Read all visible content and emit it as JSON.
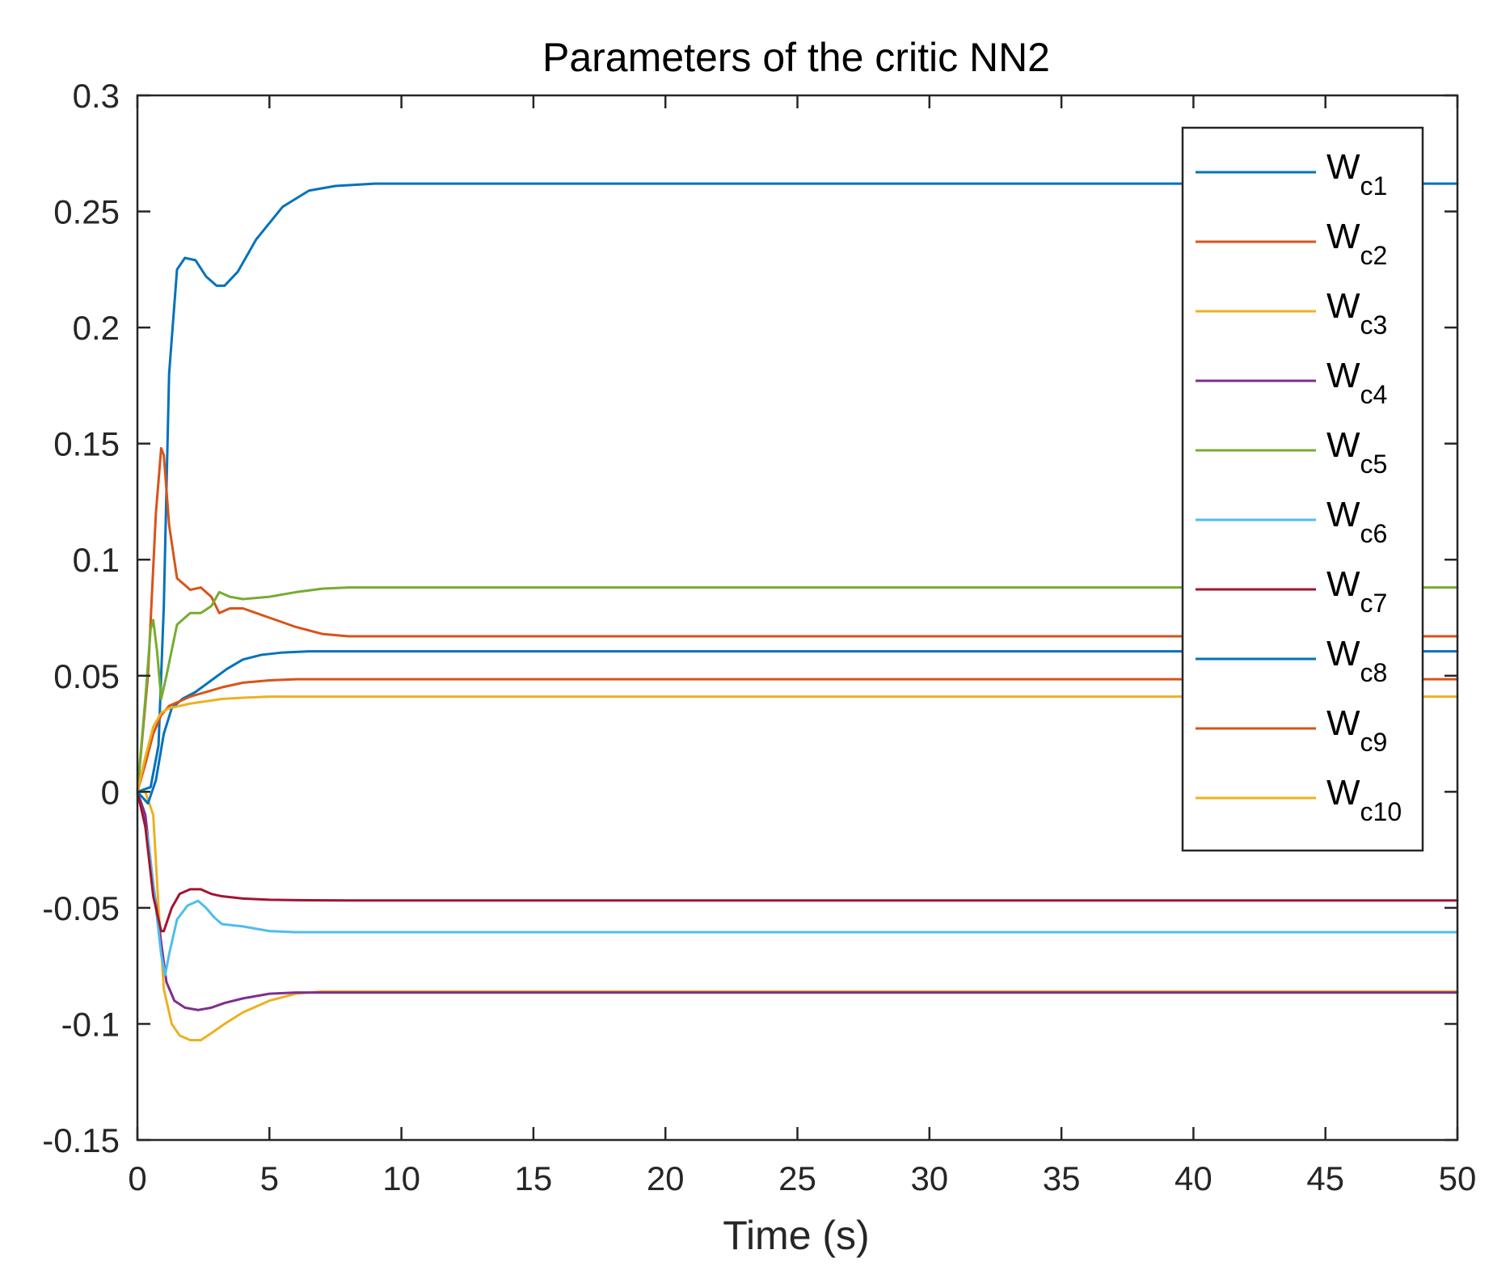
{
  "chart_data": {
    "type": "line",
    "title": "Parameters of the critic NN2",
    "xlabel": "Time (s)",
    "ylabel": "",
    "xlim": [
      0,
      50
    ],
    "ylim": [
      -0.15,
      0.3
    ],
    "x_ticks": [
      0,
      5,
      10,
      15,
      20,
      25,
      30,
      35,
      40,
      45,
      50
    ],
    "x_tick_labels": [
      "0",
      "5",
      "10",
      "15",
      "20",
      "25",
      "30",
      "35",
      "40",
      "45",
      "50"
    ],
    "y_ticks": [
      -0.15,
      -0.1,
      -0.05,
      0,
      0.05,
      0.1,
      0.15,
      0.2,
      0.25,
      0.3
    ],
    "y_tick_labels": [
      "-0.15",
      "-0.1",
      "-0.05",
      "0",
      "0.05",
      "0.1",
      "0.15",
      "0.2",
      "0.25",
      "0.3"
    ],
    "grid": false,
    "legend_position": "top-right",
    "series": [
      {
        "name": "Wc1",
        "label_main": "W",
        "label_sub": "c1",
        "color": "#0072BD",
        "x": [
          0,
          0.5,
          0.8,
          1.0,
          1.2,
          1.5,
          1.8,
          2.2,
          2.6,
          3.0,
          3.3,
          3.8,
          4.5,
          5.5,
          6.5,
          7.5,
          9,
          10,
          50
        ],
        "y": [
          0,
          0.002,
          0.02,
          0.08,
          0.18,
          0.225,
          0.23,
          0.229,
          0.222,
          0.218,
          0.218,
          0.224,
          0.238,
          0.252,
          0.259,
          0.261,
          0.262,
          0.262,
          0.262
        ]
      },
      {
        "name": "Wc2",
        "label_main": "W",
        "label_sub": "c2",
        "color": "#D95319",
        "x": [
          0,
          0.4,
          0.7,
          0.9,
          1.0,
          1.2,
          1.5,
          2.0,
          2.4,
          2.8,
          3.1,
          3.5,
          4.0,
          5,
          6,
          7,
          8,
          10,
          50
        ],
        "y": [
          0,
          0.05,
          0.12,
          0.148,
          0.145,
          0.115,
          0.092,
          0.087,
          0.088,
          0.084,
          0.077,
          0.079,
          0.079,
          0.075,
          0.071,
          0.068,
          0.067,
          0.067,
          0.067
        ]
      },
      {
        "name": "Wc3",
        "label_main": "W",
        "label_sub": "c3",
        "color": "#EDB120",
        "x": [
          0,
          0.3,
          0.6,
          0.8,
          1.0,
          1.3,
          1.6,
          2.0,
          2.4,
          2.8,
          3.3,
          4.0,
          5,
          6,
          7,
          8,
          50
        ],
        "y": [
          0,
          0.0,
          -0.01,
          -0.05,
          -0.085,
          -0.1,
          -0.105,
          -0.107,
          -0.107,
          -0.104,
          -0.1,
          -0.095,
          -0.09,
          -0.087,
          -0.086,
          -0.086,
          -0.086
        ]
      },
      {
        "name": "Wc4",
        "label_main": "W",
        "label_sub": "c4",
        "color": "#7E2F8E",
        "x": [
          0,
          0.3,
          0.6,
          0.9,
          1.1,
          1.4,
          1.8,
          2.3,
          2.8,
          3.3,
          4.0,
          5,
          6,
          7,
          50
        ],
        "y": [
          0,
          -0.01,
          -0.04,
          -0.065,
          -0.082,
          -0.09,
          -0.093,
          -0.094,
          -0.093,
          -0.091,
          -0.089,
          -0.087,
          -0.0865,
          -0.0865,
          -0.0865
        ]
      },
      {
        "name": "Wc5",
        "label_main": "W",
        "label_sub": "c5",
        "color": "#77AC30",
        "x": [
          0,
          0.3,
          0.5,
          0.6,
          0.75,
          0.9,
          1.1,
          1.5,
          2.0,
          2.4,
          2.8,
          3.1,
          3.5,
          4.0,
          5,
          6,
          7,
          8,
          10,
          50
        ],
        "y": [
          0,
          0.04,
          0.07,
          0.074,
          0.06,
          0.04,
          0.05,
          0.072,
          0.077,
          0.077,
          0.08,
          0.086,
          0.084,
          0.083,
          0.084,
          0.086,
          0.0875,
          0.088,
          0.088,
          0.088
        ]
      },
      {
        "name": "Wc6",
        "label_main": "W",
        "label_sub": "c6",
        "color": "#4DBEEE",
        "x": [
          0,
          0.4,
          0.7,
          0.9,
          1.05,
          1.2,
          1.5,
          1.9,
          2.3,
          2.6,
          2.9,
          3.2,
          4.0,
          5,
          6,
          7,
          50
        ],
        "y": [
          0,
          -0.02,
          -0.05,
          -0.07,
          -0.079,
          -0.07,
          -0.055,
          -0.049,
          -0.047,
          -0.05,
          -0.054,
          -0.057,
          -0.058,
          -0.06,
          -0.0605,
          -0.0605,
          -0.0605
        ]
      },
      {
        "name": "Wc7",
        "label_main": "W",
        "label_sub": "c7",
        "color": "#A2142F",
        "x": [
          0,
          0.3,
          0.6,
          0.9,
          1.0,
          1.3,
          1.6,
          2.0,
          2.4,
          2.8,
          3.2,
          4.0,
          5,
          6,
          8,
          50
        ],
        "y": [
          0,
          -0.015,
          -0.045,
          -0.06,
          -0.06,
          -0.05,
          -0.044,
          -0.042,
          -0.042,
          -0.044,
          -0.045,
          -0.046,
          -0.0465,
          -0.0467,
          -0.0468,
          -0.0468
        ]
      },
      {
        "name": "Wc8",
        "label_main": "W",
        "label_sub": "c8",
        "color": "#0072BD",
        "x": [
          0,
          0.4,
          0.7,
          1.0,
          1.3,
          1.7,
          2.2,
          2.8,
          3.4,
          4.0,
          4.7,
          5.5,
          6.5,
          8,
          50
        ],
        "y": [
          0,
          -0.005,
          0.005,
          0.025,
          0.036,
          0.04,
          0.043,
          0.048,
          0.053,
          0.057,
          0.059,
          0.06,
          0.0605,
          0.0605,
          0.0605
        ]
      },
      {
        "name": "Wc9",
        "label_main": "W",
        "label_sub": "c9",
        "color": "#D95319",
        "x": [
          0,
          0.3,
          0.6,
          0.9,
          1.2,
          1.6,
          2.0,
          2.6,
          3.2,
          4.0,
          5,
          6,
          7,
          50
        ],
        "y": [
          0,
          0.012,
          0.025,
          0.033,
          0.037,
          0.039,
          0.041,
          0.043,
          0.045,
          0.047,
          0.048,
          0.0485,
          0.0485,
          0.0485
        ]
      },
      {
        "name": "Wc10",
        "label_main": "W",
        "label_sub": "c10",
        "color": "#EDB120",
        "x": [
          0,
          0.3,
          0.6,
          0.9,
          1.2,
          1.6,
          2.0,
          2.6,
          3.2,
          4.0,
          5,
          6,
          8,
          50
        ],
        "y": [
          0,
          0.015,
          0.028,
          0.034,
          0.036,
          0.037,
          0.038,
          0.039,
          0.04,
          0.0405,
          0.041,
          0.041,
          0.041,
          0.041
        ]
      }
    ]
  }
}
